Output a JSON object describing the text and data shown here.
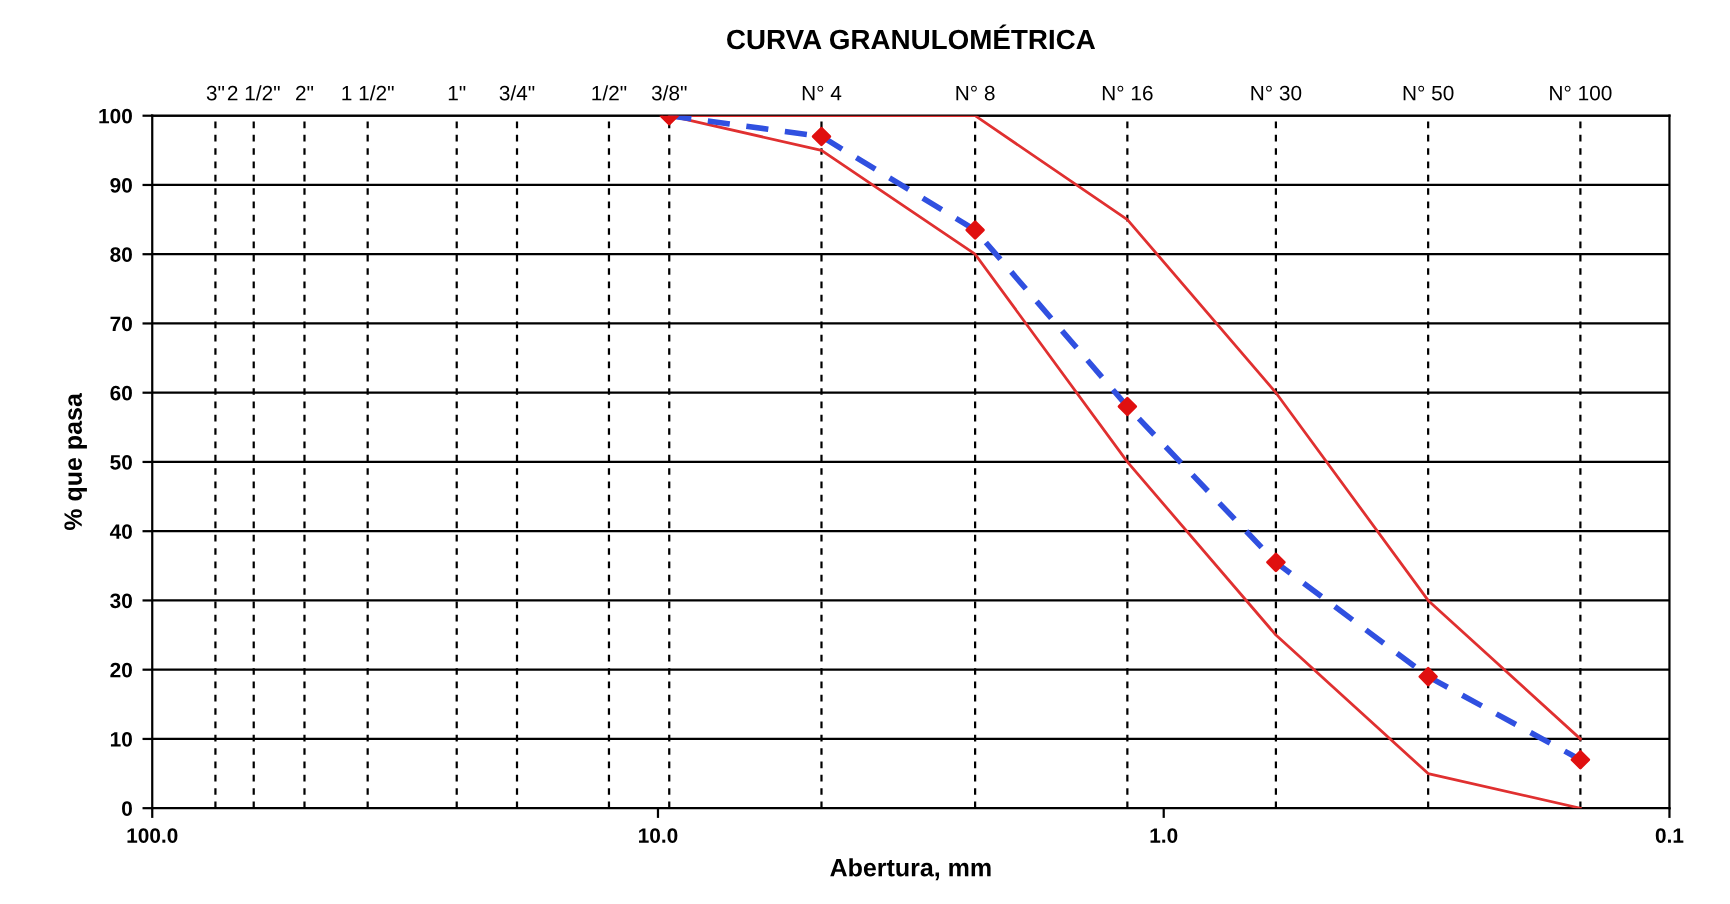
{
  "chart_data": {
    "type": "line",
    "title": "CURVA GRANULOMÉTRICA",
    "xlabel": "Abertura, mm",
    "ylabel": "% que pasa",
    "log": "x",
    "xlim": [
      100,
      0.1
    ],
    "xticks": [
      {
        "value": 100,
        "label": "100.0"
      },
      {
        "value": 10,
        "label": "10.0"
      },
      {
        "value": 1,
        "label": "1.0"
      },
      {
        "value": 0.1,
        "label": "0.1"
      }
    ],
    "ylim": [
      0,
      100
    ],
    "yticks": [
      0,
      10,
      20,
      30,
      40,
      50,
      60,
      70,
      80,
      90,
      100
    ],
    "grid": "y",
    "ref_lines": [
      {
        "axis": "x",
        "value": 75,
        "color": "#000000",
        "line_style": "dashed"
      },
      {
        "axis": "x",
        "value": 63,
        "color": "#000000",
        "line_style": "dashed"
      },
      {
        "axis": "x",
        "value": 50,
        "color": "#000000",
        "line_style": "dashed"
      },
      {
        "axis": "x",
        "value": 37.5,
        "color": "#000000",
        "line_style": "dashed"
      },
      {
        "axis": "x",
        "value": 25,
        "color": "#000000",
        "line_style": "dashed"
      },
      {
        "axis": "x",
        "value": 19,
        "color": "#000000",
        "line_style": "dashed"
      },
      {
        "axis": "x",
        "value": 12.5,
        "color": "#000000",
        "line_style": "dashed"
      },
      {
        "axis": "x",
        "value": 9.5,
        "color": "#000000",
        "line_style": "dashed"
      },
      {
        "axis": "x",
        "value": 4.75,
        "color": "#000000",
        "line_style": "dashed"
      },
      {
        "axis": "x",
        "value": 2.36,
        "color": "#000000",
        "line_style": "dashed"
      },
      {
        "axis": "x",
        "value": 1.18,
        "color": "#000000",
        "line_style": "dashed"
      },
      {
        "axis": "x",
        "value": 0.6,
        "color": "#000000",
        "line_style": "dashed"
      },
      {
        "axis": "x",
        "value": 0.3,
        "color": "#000000",
        "line_style": "dashed"
      },
      {
        "axis": "x",
        "value": 0.15,
        "color": "#000000",
        "line_style": "dashed"
      }
    ],
    "annotations": [
      {
        "text": "3\"",
        "x": 75,
        "y": 100
      },
      {
        "text": "2 1/2\"",
        "x": 63,
        "y": 100
      },
      {
        "text": "2\"",
        "x": 50,
        "y": 100
      },
      {
        "text": "1 1/2\"",
        "x": 37.5,
        "y": 100
      },
      {
        "text": "1\"",
        "x": 25,
        "y": 100
      },
      {
        "text": "3/4\"",
        "x": 19,
        "y": 100
      },
      {
        "text": "1/2\"",
        "x": 12.5,
        "y": 100
      },
      {
        "text": "3/8\"",
        "x": 9.5,
        "y": 100
      },
      {
        "text": "N° 4",
        "x": 4.75,
        "y": 100
      },
      {
        "text": "N° 8",
        "x": 2.36,
        "y": 100
      },
      {
        "text": "N° 16",
        "x": 1.18,
        "y": 100
      },
      {
        "text": "N° 30",
        "x": 0.6,
        "y": 100
      },
      {
        "text": "N° 50",
        "x": 0.3,
        "y": 100
      },
      {
        "text": "N° 100",
        "x": 0.15,
        "y": 100
      }
    ],
    "x": [
      9.5,
      4.75,
      2.36,
      1.18,
      0.6,
      0.3,
      0.15
    ],
    "series": [
      {
        "color": "#e03030",
        "line_style": "solid",
        "values": [
          100,
          100,
          100,
          85,
          60,
          30,
          10
        ]
      },
      {
        "color": "#e03030",
        "line_style": "solid",
        "values": [
          100,
          95,
          80,
          50,
          25,
          5,
          0
        ]
      },
      {
        "color": "#3050e0",
        "line_style": "dashed",
        "values": [
          100,
          97,
          83.5,
          58,
          35.5,
          19,
          7
        ]
      },
      {
        "type": "scatter",
        "color": "#e01010",
        "marker": "diamond",
        "values": [
          100,
          97,
          83.5,
          58,
          35.5,
          19,
          7
        ]
      }
    ]
  }
}
